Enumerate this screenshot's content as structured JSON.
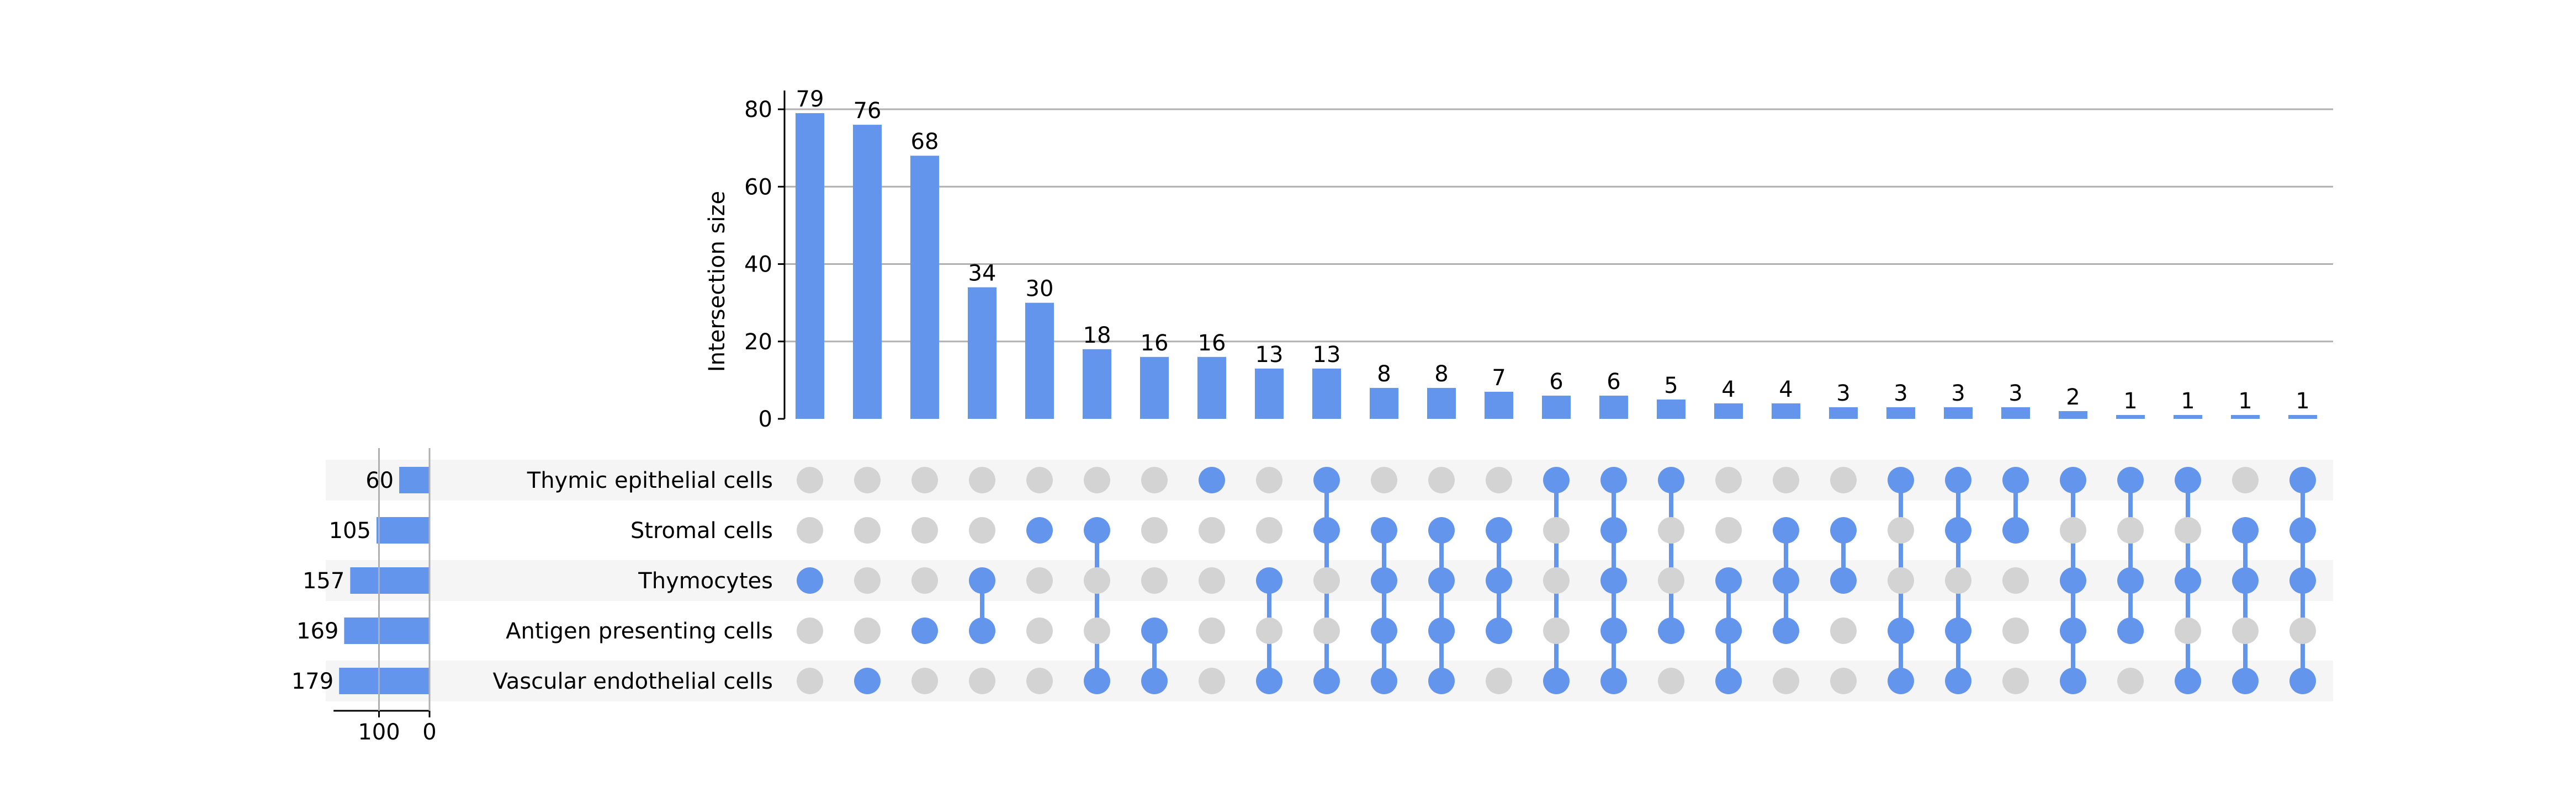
{
  "chart_data": {
    "type": "upset",
    "title": "",
    "colors": {
      "active": "#6495ed",
      "inactive": "#d3d3d3",
      "stripe": "#f5f5f5",
      "grid": "#b0b0b0",
      "axis": "#000000"
    },
    "intersection_axis": {
      "ylabel": "Intersection size",
      "ylim": [
        0,
        84
      ],
      "ticks": [
        0,
        20,
        40,
        60,
        80
      ],
      "grid": true
    },
    "set_size_axis": {
      "ticks": [
        100,
        0
      ],
      "xlim": [
        0,
        190
      ]
    },
    "sets": [
      {
        "name": "Thymic epithelial cells",
        "size": 60
      },
      {
        "name": "Stromal cells",
        "size": 105
      },
      {
        "name": "Thymocytes",
        "size": 157
      },
      {
        "name": "Antigen presenting cells",
        "size": 169
      },
      {
        "name": "Vascular endothelial cells",
        "size": 179
      }
    ],
    "intersections": [
      {
        "size": 79,
        "members": [
          0,
          0,
          1,
          0,
          0
        ]
      },
      {
        "size": 76,
        "members": [
          0,
          0,
          0,
          0,
          1
        ]
      },
      {
        "size": 68,
        "members": [
          0,
          0,
          0,
          1,
          0
        ]
      },
      {
        "size": 34,
        "members": [
          0,
          0,
          1,
          1,
          0
        ]
      },
      {
        "size": 30,
        "members": [
          0,
          1,
          0,
          0,
          0
        ]
      },
      {
        "size": 18,
        "members": [
          0,
          1,
          0,
          0,
          1
        ]
      },
      {
        "size": 16,
        "members": [
          0,
          0,
          0,
          1,
          1
        ]
      },
      {
        "size": 16,
        "members": [
          1,
          0,
          0,
          0,
          0
        ]
      },
      {
        "size": 13,
        "members": [
          0,
          0,
          1,
          0,
          1
        ]
      },
      {
        "size": 13,
        "members": [
          1,
          1,
          0,
          0,
          1
        ]
      },
      {
        "size": 8,
        "members": [
          0,
          1,
          1,
          1,
          1
        ]
      },
      {
        "size": 8,
        "members": [
          0,
          1,
          1,
          1,
          1
        ]
      },
      {
        "size": 7,
        "members": [
          0,
          1,
          1,
          1,
          0
        ]
      },
      {
        "size": 6,
        "members": [
          1,
          0,
          0,
          0,
          1
        ]
      },
      {
        "size": 6,
        "members": [
          1,
          1,
          1,
          1,
          1
        ]
      },
      {
        "size": 5,
        "members": [
          1,
          0,
          0,
          1,
          0
        ]
      },
      {
        "size": 4,
        "members": [
          0,
          0,
          1,
          1,
          1
        ]
      },
      {
        "size": 4,
        "members": [
          0,
          1,
          1,
          1,
          0
        ]
      },
      {
        "size": 3,
        "members": [
          0,
          1,
          1,
          0,
          0
        ]
      },
      {
        "size": 3,
        "members": [
          1,
          0,
          0,
          1,
          1
        ]
      },
      {
        "size": 3,
        "members": [
          1,
          1,
          0,
          1,
          1
        ]
      },
      {
        "size": 3,
        "members": [
          1,
          1,
          0,
          0,
          0
        ]
      },
      {
        "size": 2,
        "members": [
          1,
          0,
          1,
          1,
          1
        ]
      },
      {
        "size": 1,
        "members": [
          1,
          0,
          1,
          1,
          0
        ]
      },
      {
        "size": 1,
        "members": [
          1,
          0,
          1,
          0,
          1
        ]
      },
      {
        "size": 1,
        "members": [
          0,
          1,
          1,
          0,
          1
        ]
      },
      {
        "size": 1,
        "members": [
          1,
          1,
          1,
          0,
          1
        ]
      }
    ]
  }
}
